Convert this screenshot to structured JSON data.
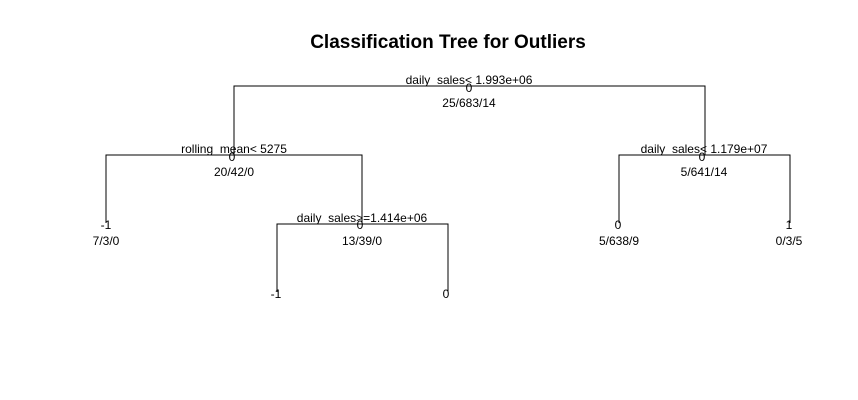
{
  "title": "Classification Tree for Outliers",
  "nodes": {
    "root": {
      "split": "daily_sales< 1.993e+06",
      "class": "0",
      "counts": "25/683/14"
    },
    "left": {
      "split": "rolling_mean< 5275",
      "class": "0",
      "counts": "20/42/0"
    },
    "right": {
      "split": "daily_sales< 1.179e+07",
      "class": "0",
      "counts": "5/641/14"
    },
    "left_left_leaf": {
      "class": "-1",
      "counts": "7/3/0"
    },
    "left_right": {
      "split": "daily_sales>=1.414e+06",
      "class": "0",
      "counts": "13/39/0"
    },
    "left_right_left_leaf": {
      "class": "-1"
    },
    "left_right_right_leaf": {
      "class": "0"
    },
    "right_left_leaf": {
      "class": "0",
      "counts": "5/638/9"
    },
    "right_right_leaf": {
      "class": "1",
      "counts": "0/3/5"
    }
  }
}
